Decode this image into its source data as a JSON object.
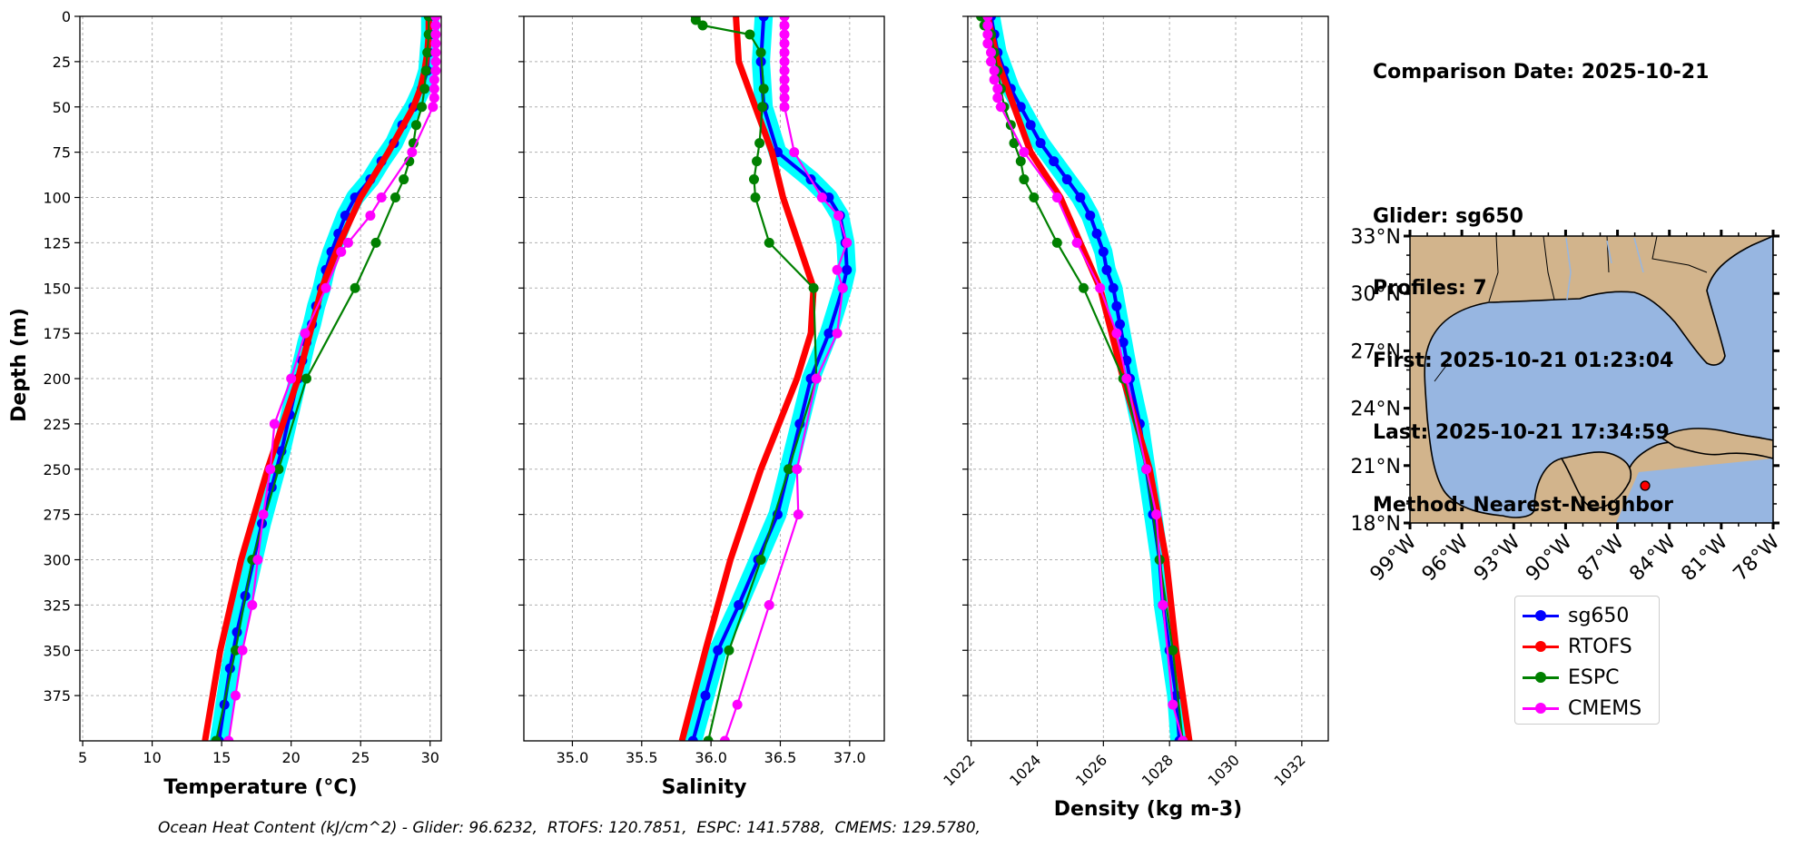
{
  "info": {
    "comparison_date": "Comparison Date: 2025-10-21",
    "glider": "Glider: sg650",
    "profiles": "Profiles: 7",
    "first": "First: 2025-10-21 01:23:04",
    "last": "Last: 2025-10-21 17:34:59",
    "method": "Method: Nearest-Neighbor"
  },
  "footer": "Ocean Heat Content (kJ/cm^2) - Glider: 96.6232,  RTOFS: 120.7851,  ESPC: 141.5788,  CMEMS: 129.5780,",
  "colors": {
    "sg650": "#0000ff",
    "sg650_shade": "#00ffff",
    "RTOFS": "#ff0000",
    "ESPC": "#008000",
    "CMEMS": "#ff00ff",
    "land": "#d2b48c",
    "ocean": "#97b6e1"
  },
  "legend": [
    {
      "name": "sg650",
      "color": "#0000ff"
    },
    {
      "name": "RTOFS",
      "color": "#ff0000"
    },
    {
      "name": "ESPC",
      "color": "#008000"
    },
    {
      "name": "CMEMS",
      "color": "#ff00ff"
    }
  ],
  "chart_data": [
    {
      "type": "line",
      "xlabel": "Temperature (°C)",
      "ylabel": "Depth (m)",
      "xlim": [
        4.8,
        30.8
      ],
      "ylim": [
        400,
        0
      ],
      "xticks": [
        5,
        10,
        15,
        20,
        25,
        30
      ],
      "yticks": [
        0,
        25,
        50,
        75,
        100,
        125,
        150,
        175,
        200,
        225,
        250,
        275,
        300,
        325,
        350,
        375
      ],
      "grid": true,
      "series": [
        {
          "name": "sg650",
          "depth": [
            0,
            10,
            20,
            30,
            40,
            50,
            60,
            70,
            80,
            90,
            100,
            110,
            120,
            130,
            140,
            150,
            160,
            170,
            180,
            190,
            200,
            220,
            240,
            260,
            280,
            300,
            320,
            340,
            360,
            380,
            400
          ],
          "values": [
            30.0,
            30.0,
            29.9,
            29.8,
            29.4,
            28.8,
            28.0,
            27.4,
            26.5,
            25.7,
            24.6,
            23.9,
            23.4,
            22.9,
            22.5,
            22.2,
            21.8,
            21.5,
            21.1,
            20.8,
            20.5,
            19.9,
            19.3,
            18.6,
            17.9,
            17.3,
            16.7,
            16.1,
            15.6,
            15.2,
            14.8
          ]
        },
        {
          "name": "RTOFS",
          "depth": [
            0,
            10,
            20,
            30,
            40,
            50,
            75,
            100,
            125,
            150,
            200,
            250,
            300,
            350,
            400
          ],
          "values": [
            29.9,
            29.9,
            29.8,
            29.6,
            29.3,
            28.8,
            27.0,
            25.0,
            23.5,
            22.2,
            20.5,
            18.3,
            16.4,
            14.9,
            13.8
          ]
        },
        {
          "name": "ESPC",
          "depth": [
            0,
            10,
            20,
            30,
            40,
            50,
            60,
            70,
            80,
            90,
            100,
            125,
            150,
            200,
            250,
            300,
            350,
            400
          ],
          "values": [
            29.9,
            29.9,
            29.8,
            29.7,
            29.6,
            29.4,
            29.0,
            28.8,
            28.5,
            28.1,
            27.5,
            26.1,
            24.6,
            21.1,
            19.1,
            17.2,
            16.0,
            14.6
          ]
        },
        {
          "name": "CMEMS",
          "depth": [
            0,
            5,
            10,
            15,
            20,
            25,
            30,
            35,
            40,
            45,
            50,
            75,
            100,
            110,
            125,
            130,
            150,
            175,
            200,
            225,
            250,
            275,
            300,
            325,
            350,
            375,
            400
          ],
          "values": [
            30.4,
            30.4,
            30.4,
            30.4,
            30.4,
            30.4,
            30.4,
            30.3,
            30.3,
            30.3,
            30.2,
            28.7,
            26.5,
            25.7,
            24.1,
            23.6,
            22.5,
            21.0,
            20.0,
            18.8,
            18.5,
            18.0,
            17.6,
            17.2,
            16.5,
            16.0,
            15.5
          ]
        }
      ]
    },
    {
      "type": "line",
      "xlabel": "Salinity",
      "ylabel": "",
      "xlim": [
        34.65,
        37.25
      ],
      "ylim": [
        400,
        0
      ],
      "xticks": [
        35.0,
        35.5,
        36.0,
        36.5,
        37.0
      ],
      "grid": true,
      "series": [
        {
          "name": "sg650",
          "depth": [
            0,
            25,
            50,
            75,
            90,
            100,
            110,
            125,
            140,
            150,
            175,
            200,
            225,
            250,
            275,
            300,
            325,
            350,
            375,
            400
          ],
          "values": [
            36.38,
            36.36,
            36.38,
            36.48,
            36.72,
            36.85,
            36.93,
            36.97,
            36.98,
            36.95,
            36.85,
            36.72,
            36.64,
            36.56,
            36.48,
            36.34,
            36.2,
            36.05,
            35.96,
            35.87
          ]
        },
        {
          "name": "RTOFS",
          "depth": [
            0,
            25,
            50,
            75,
            100,
            125,
            150,
            175,
            200,
            250,
            300,
            350,
            400
          ],
          "values": [
            36.18,
            36.2,
            36.32,
            36.44,
            36.52,
            36.63,
            36.74,
            36.72,
            36.62,
            36.36,
            36.14,
            35.96,
            35.79
          ]
        },
        {
          "name": "ESPC",
          "depth": [
            0,
            2,
            5,
            10,
            20,
            40,
            50,
            70,
            80,
            90,
            100,
            125,
            150,
            200,
            250,
            300,
            350,
            400
          ],
          "values": [
            35.89,
            35.89,
            35.94,
            36.28,
            36.36,
            36.38,
            36.37,
            36.35,
            36.33,
            36.31,
            36.32,
            36.42,
            36.74,
            36.76,
            36.56,
            36.36,
            36.13,
            35.98
          ]
        },
        {
          "name": "CMEMS",
          "depth": [
            0,
            5,
            10,
            15,
            20,
            25,
            30,
            35,
            40,
            45,
            50,
            75,
            100,
            110,
            125,
            140,
            150,
            175,
            200,
            250,
            275,
            325,
            380,
            400
          ],
          "values": [
            36.53,
            36.53,
            36.53,
            36.53,
            36.53,
            36.53,
            36.53,
            36.53,
            36.53,
            36.53,
            36.53,
            36.6,
            36.8,
            36.92,
            36.98,
            36.91,
            36.95,
            36.91,
            36.76,
            36.62,
            36.63,
            36.42,
            36.19,
            36.1
          ]
        }
      ]
    },
    {
      "type": "line",
      "xlabel": "Density (kg m-3)",
      "ylabel": "",
      "xlim": [
        1021.9,
        1032.8
      ],
      "ylim": [
        400,
        0
      ],
      "xticks": [
        1022,
        1024,
        1026,
        1028,
        1030,
        1032
      ],
      "grid": true,
      "series": [
        {
          "name": "sg650",
          "depth": [
            0,
            10,
            20,
            30,
            40,
            50,
            60,
            70,
            80,
            90,
            100,
            110,
            120,
            130,
            140,
            150,
            160,
            170,
            180,
            190,
            200,
            225,
            250,
            275,
            300,
            325,
            350,
            375,
            400
          ],
          "values": [
            1022.6,
            1022.7,
            1022.8,
            1023.0,
            1023.2,
            1023.5,
            1023.8,
            1024.1,
            1024.5,
            1024.9,
            1025.3,
            1025.6,
            1025.8,
            1026.0,
            1026.1,
            1026.3,
            1026.4,
            1026.5,
            1026.6,
            1026.7,
            1026.8,
            1027.1,
            1027.3,
            1027.5,
            1027.7,
            1027.8,
            1028.0,
            1028.2,
            1028.3
          ]
        },
        {
          "name": "RTOFS",
          "depth": [
            0,
            25,
            50,
            75,
            100,
            125,
            150,
            200,
            250,
            300,
            350,
            400
          ],
          "values": [
            1022.5,
            1022.8,
            1023.3,
            1023.8,
            1024.7,
            1025.3,
            1025.9,
            1026.6,
            1027.4,
            1027.9,
            1028.2,
            1028.6
          ]
        },
        {
          "name": "ESPC",
          "depth": [
            0,
            5,
            10,
            20,
            30,
            40,
            50,
            60,
            70,
            80,
            90,
            100,
            125,
            150,
            200,
            250,
            300,
            350,
            400
          ],
          "values": [
            1022.3,
            1022.4,
            1022.6,
            1022.7,
            1022.8,
            1022.9,
            1023.0,
            1023.2,
            1023.3,
            1023.5,
            1023.6,
            1023.9,
            1024.6,
            1025.4,
            1026.6,
            1027.3,
            1027.7,
            1028.1,
            1028.4
          ]
        },
        {
          "name": "CMEMS",
          "depth": [
            0,
            5,
            10,
            15,
            20,
            25,
            30,
            35,
            40,
            45,
            50,
            75,
            100,
            125,
            150,
            175,
            200,
            250,
            275,
            325,
            380,
            400
          ],
          "values": [
            1022.5,
            1022.5,
            1022.5,
            1022.5,
            1022.6,
            1022.6,
            1022.7,
            1022.7,
            1022.8,
            1022.8,
            1022.9,
            1023.6,
            1024.6,
            1025.2,
            1025.9,
            1026.4,
            1026.7,
            1027.3,
            1027.6,
            1027.8,
            1028.1,
            1028.4
          ]
        }
      ]
    }
  ],
  "map": {
    "lat_labels": [
      "33°N",
      "30°N",
      "27°N",
      "24°N",
      "21°N",
      "18°N"
    ],
    "lon_labels": [
      "99°W",
      "96°W",
      "93°W",
      "90°W",
      "87°W",
      "84°W",
      "81°W",
      "78°W"
    ],
    "glider_position": {
      "lon": -85.5,
      "lat": 20.0
    }
  }
}
